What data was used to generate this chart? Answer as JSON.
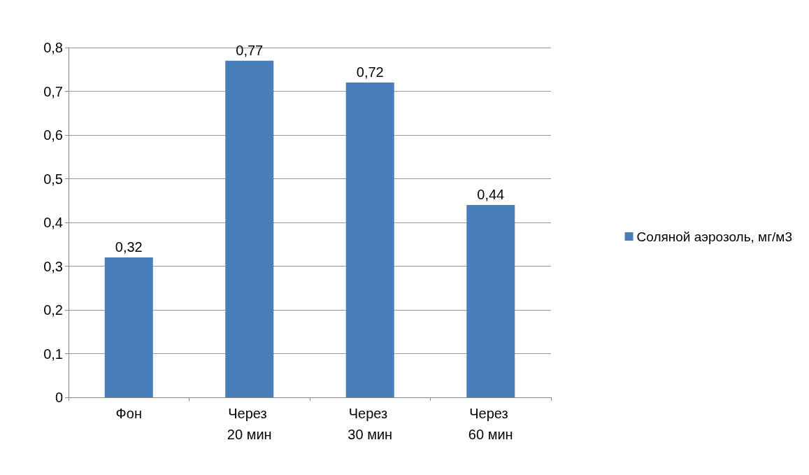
{
  "chart_data": {
    "type": "bar",
    "categories": [
      "Фон",
      "Через 20 мин",
      "Через 30 мин",
      "Через 60 мин"
    ],
    "series": [
      {
        "name": "Соляной аэрозоль, мг/м3",
        "color": "#4a7ebb",
        "values": [
          0.32,
          0.77,
          0.72,
          0.44
        ],
        "value_labels": [
          "0,32",
          "0,77",
          "0,72",
          "0,44"
        ]
      }
    ],
    "ylim": [
      0,
      0.8
    ],
    "yticks": [
      {
        "value": 0,
        "label": "0"
      },
      {
        "value": 0.1,
        "label": "0,1"
      },
      {
        "value": 0.2,
        "label": "0,2"
      },
      {
        "value": 0.3,
        "label": "0,3"
      },
      {
        "value": 0.4,
        "label": "0,4"
      },
      {
        "value": 0.5,
        "label": "0,5"
      },
      {
        "value": 0.6,
        "label": "0,6"
      },
      {
        "value": 0.7,
        "label": "0,7"
      },
      {
        "value": 0.8,
        "label": "0,8"
      }
    ],
    "grid": "y",
    "legend": "right"
  }
}
